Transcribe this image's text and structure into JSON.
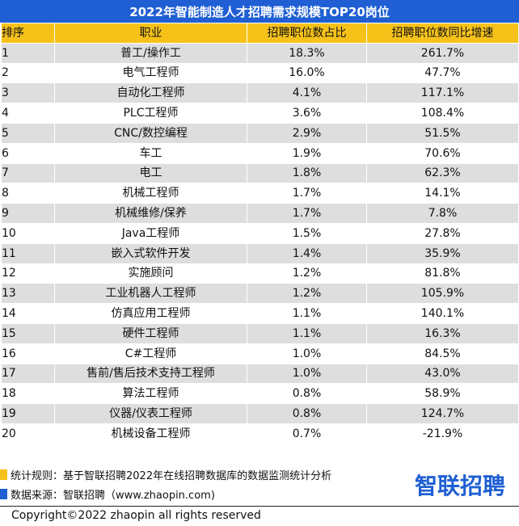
{
  "title": "2022年智能制造人才招聘需求规模TOP20岗位",
  "headers": {
    "rank": "排序",
    "job": "职业",
    "share": "招聘职位数占比",
    "growth": "招聘职位数同比增速"
  },
  "rows": [
    {
      "rank": "1",
      "job": "普工/操作工",
      "share": "18.3%",
      "growth": "261.7%"
    },
    {
      "rank": "2",
      "job": "电气工程师",
      "share": "16.0%",
      "growth": "47.7%"
    },
    {
      "rank": "3",
      "job": "自动化工程师",
      "share": "4.1%",
      "growth": "117.1%"
    },
    {
      "rank": "4",
      "job": "PLC工程师",
      "share": "3.6%",
      "growth": "108.4%"
    },
    {
      "rank": "5",
      "job": "CNC/数控编程",
      "share": "2.9%",
      "growth": "51.5%"
    },
    {
      "rank": "6",
      "job": "车工",
      "share": "1.9%",
      "growth": "70.6%"
    },
    {
      "rank": "7",
      "job": "电工",
      "share": "1.8%",
      "growth": "62.3%"
    },
    {
      "rank": "8",
      "job": "机械工程师",
      "share": "1.7%",
      "growth": "14.1%"
    },
    {
      "rank": "9",
      "job": "机械维修/保养",
      "share": "1.7%",
      "growth": "7.8%"
    },
    {
      "rank": "10",
      "job": "Java工程师",
      "share": "1.5%",
      "growth": "27.8%"
    },
    {
      "rank": "11",
      "job": "嵌入式软件开发",
      "share": "1.4%",
      "growth": "35.9%"
    },
    {
      "rank": "12",
      "job": "实施顾问",
      "share": "1.2%",
      "growth": "81.8%"
    },
    {
      "rank": "13",
      "job": "工业机器人工程师",
      "share": "1.2%",
      "growth": "105.9%"
    },
    {
      "rank": "14",
      "job": "仿真应用工程师",
      "share": "1.1%",
      "growth": "140.1%"
    },
    {
      "rank": "15",
      "job": "硬件工程师",
      "share": "1.1%",
      "growth": "16.3%"
    },
    {
      "rank": "16",
      "job": "C#工程师",
      "share": "1.0%",
      "growth": "84.5%"
    },
    {
      "rank": "17",
      "job": "售前/售后技术支持工程师",
      "share": "1.0%",
      "growth": "43.0%"
    },
    {
      "rank": "18",
      "job": "算法工程师",
      "share": "0.8%",
      "growth": "58.9%"
    },
    {
      "rank": "19",
      "job": "仪器/仪表工程师",
      "share": "0.8%",
      "growth": "124.7%"
    },
    {
      "rank": "20",
      "job": "机械设备工程师",
      "share": "0.7%",
      "growth": "-21.9%"
    }
  ],
  "notes": {
    "rule": "统计规则：基于智联招聘2022年在线招聘数据库的数据监测统计分析",
    "source": "数据来源：智联招聘（www.zhaopin.com)"
  },
  "logo_text": "智联招聘",
  "copyright": "Copyright©2022 zhaopin all rights reserved",
  "colors": {
    "title_bg": "#1f5fd3",
    "header_bg": "#f6c21a",
    "stripe": "#dedede",
    "note_yellow": "#f6c21a",
    "note_blue": "#1f5fd3"
  }
}
